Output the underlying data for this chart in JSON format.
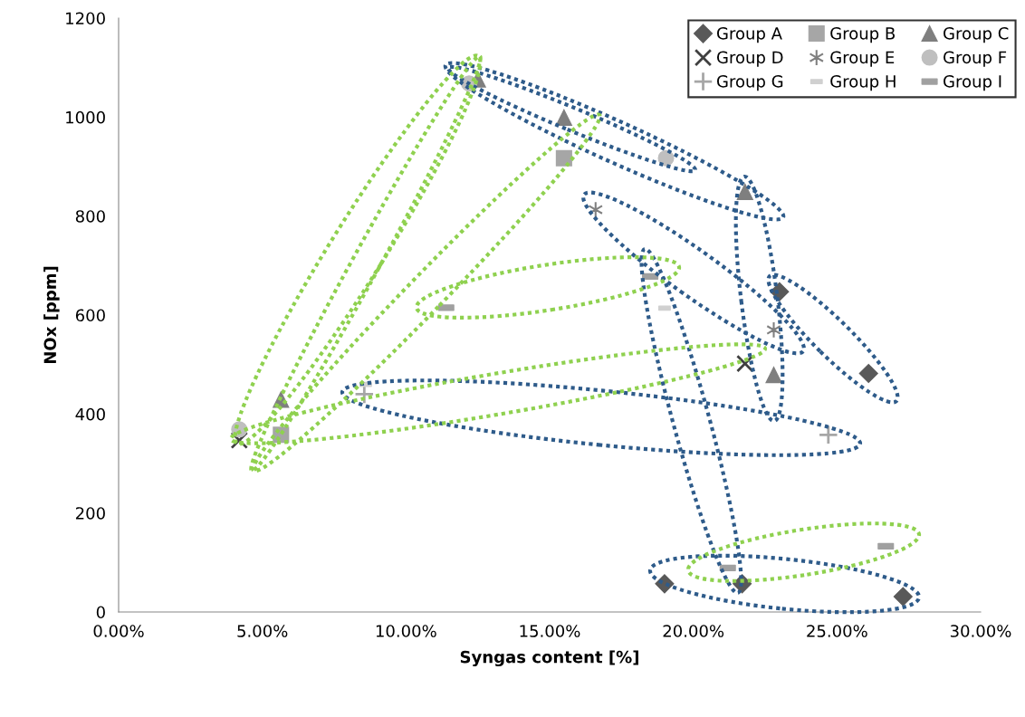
{
  "chart_data": {
    "type": "scatter",
    "xlabel": "Syngas content [%]",
    "ylabel": "NOx [ppm]",
    "xlim": [
      0,
      30
    ],
    "ylim": [
      0,
      1200
    ],
    "xticks": [
      {
        "value": 0,
        "label": "0.00%"
      },
      {
        "value": 5,
        "label": "5.00%"
      },
      {
        "value": 10,
        "label": "10.00%"
      },
      {
        "value": 15,
        "label": "15.00%"
      },
      {
        "value": 20,
        "label": "20.00%"
      },
      {
        "value": 25,
        "label": "25.00%"
      },
      {
        "value": 30,
        "label": "30.00%"
      }
    ],
    "yticks": [
      0,
      200,
      400,
      600,
      800,
      1000,
      1200
    ],
    "grid": false,
    "legend": "top right",
    "series": [
      {
        "name": "Group A",
        "color": "#595959",
        "marker": "diamond",
        "x": [
          19.0,
          21.7,
          27.3,
          23.0,
          26.1
        ],
        "values": [
          57,
          57,
          31,
          647,
          482
        ]
      },
      {
        "name": "Group B",
        "color": "#a6a6a6",
        "marker": "square",
        "x": [
          5.65,
          15.5
        ],
        "values": [
          358,
          917
        ]
      },
      {
        "name": "Group C",
        "color": "#7f7f7f",
        "marker": "triangle",
        "x": [
          5.65,
          12.5,
          15.5,
          21.8,
          22.8
        ],
        "values": [
          429,
          1076,
          999,
          849,
          479
        ]
      },
      {
        "name": "Group D",
        "color": "#404040",
        "marker": "cross",
        "x": [
          4.2,
          21.8
        ],
        "values": [
          347,
          502
        ]
      },
      {
        "name": "Group E",
        "color": "#808080",
        "x": [
          16.6,
          22.8
        ],
        "values": [
          813,
          570
        ]
      },
      {
        "name": "Group F",
        "color": "#bfbfbf",
        "marker": "circle",
        "x": [
          4.2,
          12.2,
          19.05
        ],
        "values": [
          369,
          1068,
          917
        ]
      },
      {
        "name": "Group G",
        "color": "#a6a6a6",
        "marker": "plus",
        "x": [
          8.55,
          24.7
        ],
        "values": [
          440,
          358
        ]
      },
      {
        "name": "Group H",
        "color": "#d0d0d0",
        "x": [
          19.0,
          8.6
        ],
        "values": [
          614,
          460
        ]
      },
      {
        "name": "Group I",
        "color": "#a0a0a0",
        "x": [
          11.4,
          18.5,
          21.2,
          26.7
        ],
        "values": [
          615,
          678,
          89,
          133
        ]
      }
    ]
  }
}
